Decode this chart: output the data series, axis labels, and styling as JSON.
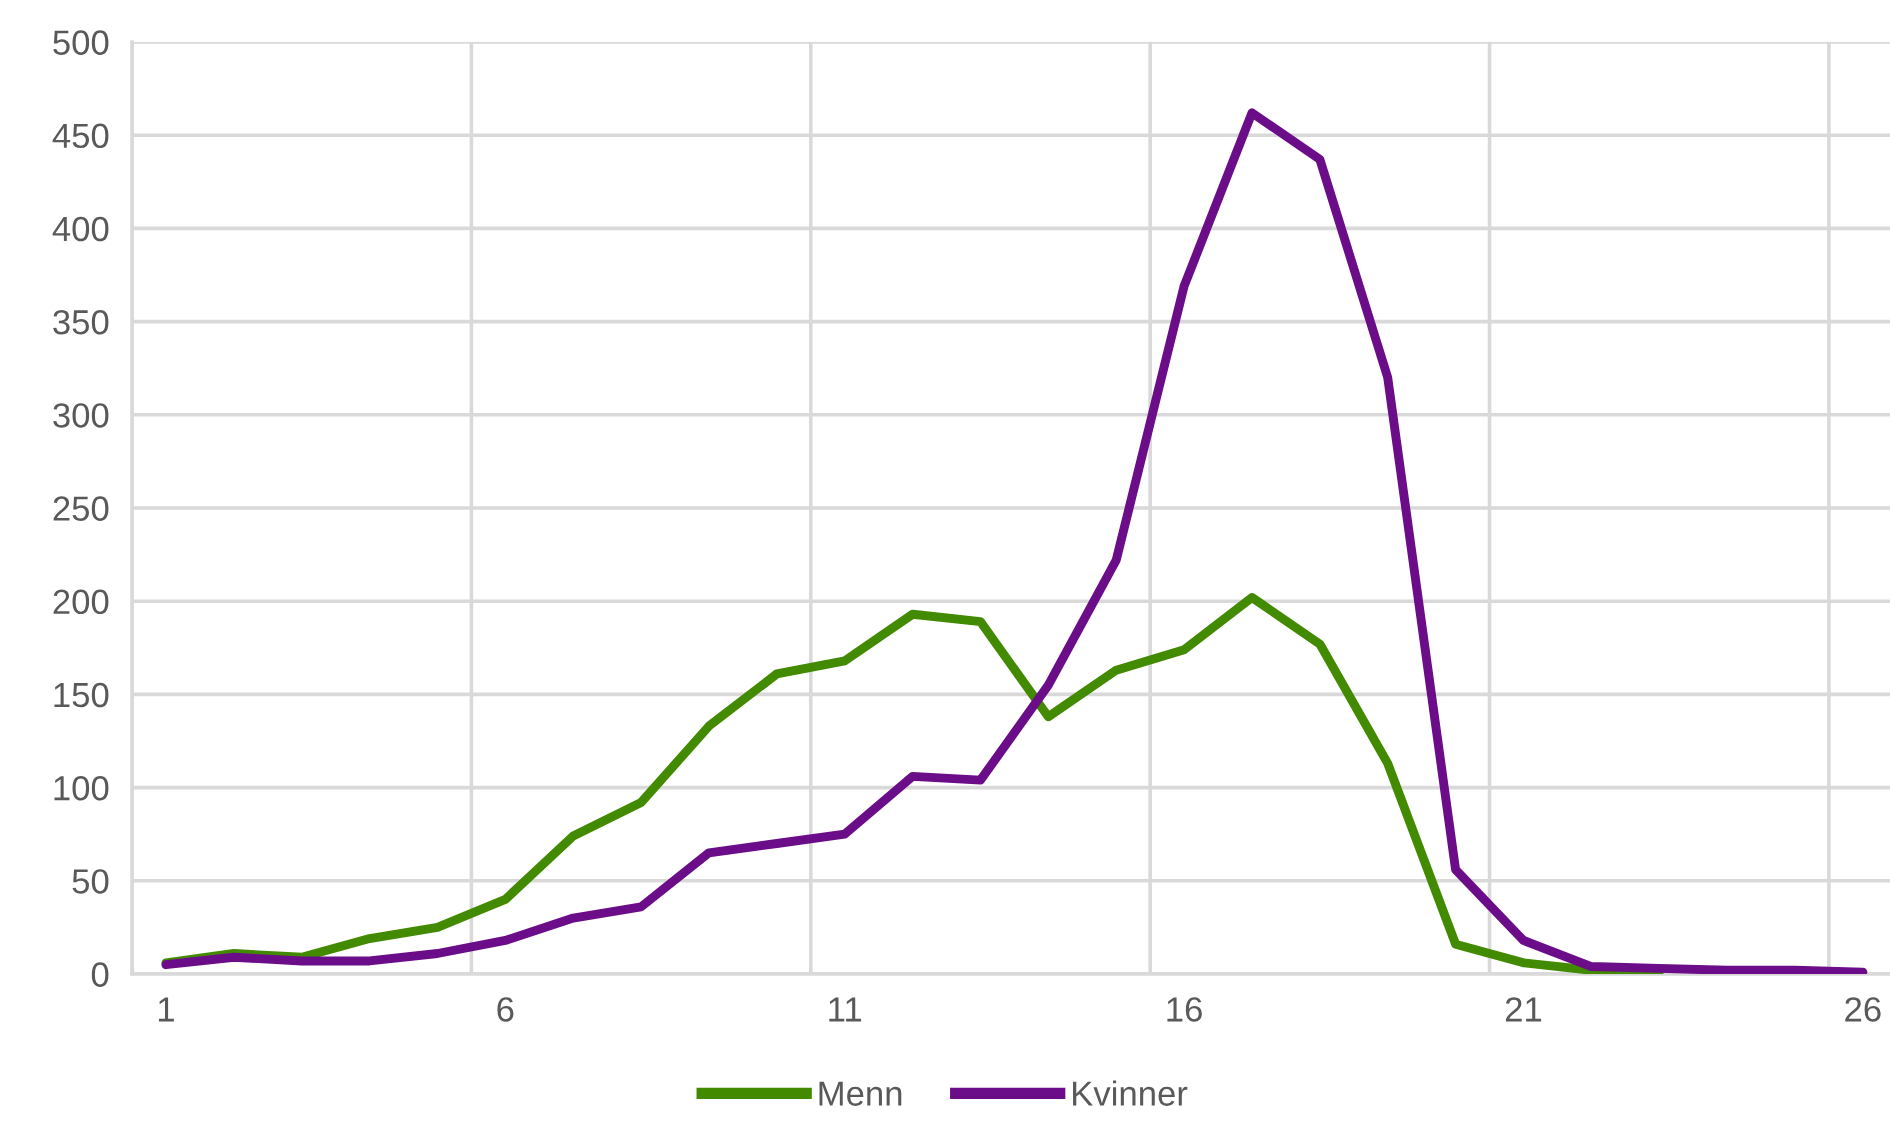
{
  "chart_data": {
    "type": "line",
    "x": [
      1,
      2,
      3,
      4,
      5,
      6,
      7,
      8,
      9,
      10,
      11,
      12,
      13,
      14,
      15,
      16,
      17,
      18,
      19,
      20,
      21,
      22,
      23,
      24,
      25,
      26
    ],
    "series": [
      {
        "name": "Menn",
        "color": "#428a00",
        "values": [
          6,
          11,
          9,
          19,
          25,
          40,
          74,
          92,
          133,
          161,
          168,
          193,
          189,
          138,
          163,
          174,
          202,
          177,
          113,
          16,
          6,
          2,
          1,
          null,
          null,
          null
        ]
      },
      {
        "name": "Kvinner",
        "color": "#6b0d88",
        "values": [
          5,
          9,
          7,
          7,
          11,
          18,
          30,
          36,
          65,
          70,
          75,
          106,
          104,
          155,
          222,
          369,
          462,
          437,
          320,
          56,
          18,
          4,
          3,
          2,
          2,
          1
        ]
      }
    ],
    "xlim": [
      0.5,
      26.4
    ],
    "xticks": [
      1,
      6,
      11,
      16,
      21,
      26,
      {
        "value": 0.5,
        "label": null
      },
      {
        "value": 5.5,
        "label": null
      },
      {
        "value": 10.5,
        "label": null
      },
      {
        "value": 15.5,
        "label": null
      },
      {
        "value": 20.5,
        "label": null
      },
      {
        "value": 25.5,
        "label": null
      }
    ],
    "ylim": [
      0,
      500
    ],
    "yticks": [
      0,
      50,
      100,
      150,
      200,
      250,
      300,
      350,
      400,
      450,
      500
    ],
    "grid": true,
    "legend": "bottom",
    "marker": "none",
    "line_style": "solid"
  }
}
